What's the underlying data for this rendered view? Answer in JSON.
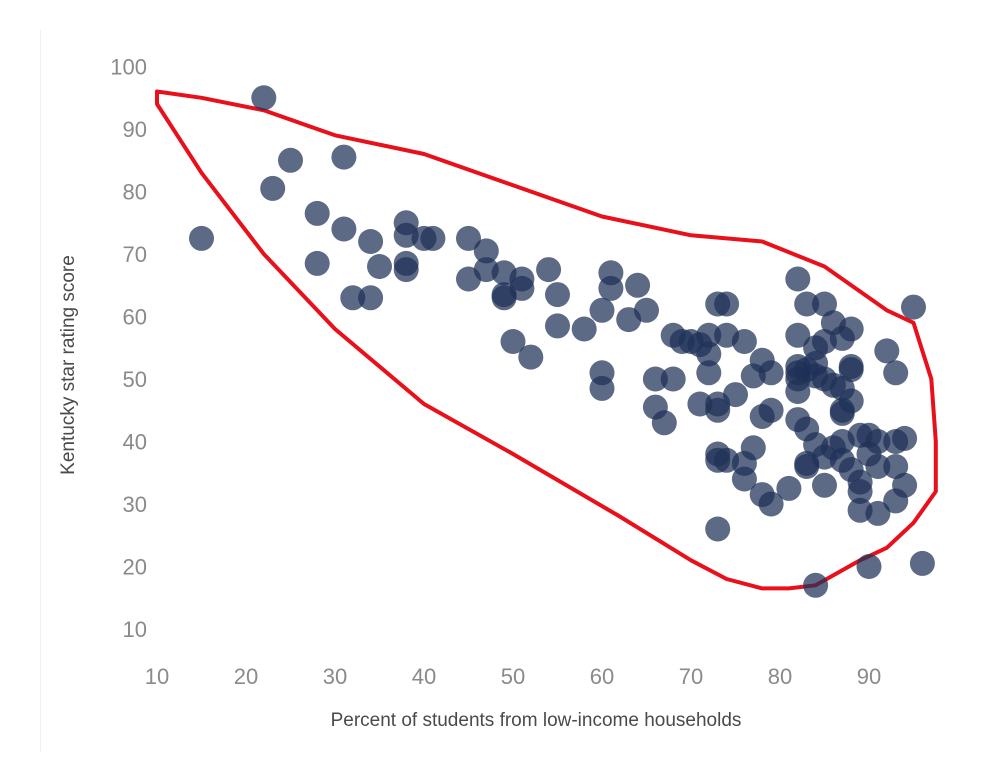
{
  "chart_data": {
    "type": "scatter",
    "title": "",
    "xlabel": "Percent of students from low-income households",
    "ylabel": "Kentucky star rating score",
    "xlim": [
      10,
      95
    ],
    "ylim": [
      10,
      100
    ],
    "xticks": [
      "10",
      "20",
      "30",
      "40",
      "50",
      "60",
      "70",
      "80",
      "90"
    ],
    "yticks": [
      "10",
      "20",
      "30",
      "40",
      "50",
      "60",
      "70",
      "80",
      "90",
      "100"
    ],
    "grid": false,
    "legend": "none",
    "colors": {
      "point": "#1f3157",
      "outline": "#e8101a",
      "tick_text": "#8a8a8a",
      "axis_title": "#4a4a4a"
    },
    "series": [
      {
        "points": [
          [
            15,
            72.5
          ],
          [
            22,
            95
          ],
          [
            23,
            80.5
          ],
          [
            25,
            85
          ],
          [
            28,
            76.5
          ],
          [
            28,
            68.5
          ],
          [
            31,
            85.5
          ],
          [
            31,
            74
          ],
          [
            32,
            63
          ],
          [
            34,
            72
          ],
          [
            34,
            63
          ],
          [
            35,
            68
          ],
          [
            38,
            75
          ],
          [
            38,
            73
          ],
          [
            38,
            68.5
          ],
          [
            38,
            67.5
          ],
          [
            40,
            72.5
          ],
          [
            41,
            72.5
          ],
          [
            45,
            72.5
          ],
          [
            45,
            66
          ],
          [
            47,
            70.5
          ],
          [
            47,
            67.5
          ],
          [
            49,
            67
          ],
          [
            49,
            63.5
          ],
          [
            49,
            63
          ],
          [
            51,
            66
          ],
          [
            51,
            64.5
          ],
          [
            50,
            56
          ],
          [
            52,
            53.5
          ],
          [
            54,
            67.5
          ],
          [
            55,
            63.5
          ],
          [
            55,
            58.5
          ],
          [
            58,
            58
          ],
          [
            60,
            61
          ],
          [
            60,
            51
          ],
          [
            60,
            48.5
          ],
          [
            61,
            67
          ],
          [
            61,
            64.5
          ],
          [
            63,
            59.5
          ],
          [
            64,
            65
          ],
          [
            65,
            61
          ],
          [
            66,
            50
          ],
          [
            66,
            45.5
          ],
          [
            67,
            43
          ],
          [
            68,
            57
          ],
          [
            68,
            50
          ],
          [
            69,
            56
          ],
          [
            70,
            56
          ],
          [
            71,
            55.5
          ],
          [
            71,
            46
          ],
          [
            72,
            57
          ],
          [
            72,
            54
          ],
          [
            72,
            51
          ],
          [
            73,
            62
          ],
          [
            73,
            46
          ],
          [
            73,
            45
          ],
          [
            73,
            38
          ],
          [
            73,
            37
          ],
          [
            74,
            62
          ],
          [
            74,
            57
          ],
          [
            74,
            37
          ],
          [
            73,
            26
          ],
          [
            75,
            47.5
          ],
          [
            76,
            56
          ],
          [
            76,
            36.5
          ],
          [
            76,
            34
          ],
          [
            77,
            50.5
          ],
          [
            77,
            39
          ],
          [
            78,
            53
          ],
          [
            78,
            44
          ],
          [
            78,
            31.5
          ],
          [
            79,
            51
          ],
          [
            79,
            45
          ],
          [
            79,
            30
          ],
          [
            81,
            32.5
          ],
          [
            82,
            66
          ],
          [
            82,
            57
          ],
          [
            82,
            52
          ],
          [
            82,
            51
          ],
          [
            82,
            50
          ],
          [
            82,
            48
          ],
          [
            82,
            43.5
          ],
          [
            83,
            62
          ],
          [
            83,
            51.5
          ],
          [
            83,
            42
          ],
          [
            83,
            36.5
          ],
          [
            83,
            36
          ],
          [
            84,
            55
          ],
          [
            84,
            52.5
          ],
          [
            84,
            50.5
          ],
          [
            84,
            39.5
          ],
          [
            84,
            17
          ],
          [
            85,
            62
          ],
          [
            85,
            56
          ],
          [
            85,
            50
          ],
          [
            85,
            37.5
          ],
          [
            85,
            33
          ],
          [
            86,
            59
          ],
          [
            86,
            49
          ],
          [
            86,
            39
          ],
          [
            87,
            56.5
          ],
          [
            87,
            48.5
          ],
          [
            87,
            45
          ],
          [
            87,
            44.5
          ],
          [
            87,
            40
          ],
          [
            87,
            37
          ],
          [
            88,
            58
          ],
          [
            88,
            52
          ],
          [
            88,
            51.5
          ],
          [
            88,
            46.5
          ],
          [
            88,
            35.5
          ],
          [
            89,
            41
          ],
          [
            89,
            33.5
          ],
          [
            89,
            32
          ],
          [
            89,
            29
          ],
          [
            90,
            41
          ],
          [
            90,
            38
          ],
          [
            90,
            20
          ],
          [
            91,
            40
          ],
          [
            91,
            36
          ],
          [
            91,
            28.5
          ],
          [
            92,
            54.5
          ],
          [
            93,
            51
          ],
          [
            93,
            40
          ],
          [
            93,
            36
          ],
          [
            93,
            30.5
          ],
          [
            94,
            40.5
          ],
          [
            94,
            33
          ],
          [
            95,
            61.5
          ],
          [
            96,
            20.5
          ]
        ]
      }
    ],
    "outline": [
      [
        10,
        96
      ],
      [
        15,
        95
      ],
      [
        22,
        93
      ],
      [
        30,
        89
      ],
      [
        40,
        86
      ],
      [
        50,
        81
      ],
      [
        60,
        76
      ],
      [
        70,
        73
      ],
      [
        78,
        72
      ],
      [
        85,
        68
      ],
      [
        92,
        61
      ],
      [
        95,
        59
      ],
      [
        97,
        50
      ],
      [
        97.5,
        40
      ],
      [
        97.5,
        32
      ],
      [
        95,
        27
      ],
      [
        92,
        23
      ],
      [
        89,
        21
      ],
      [
        84,
        17
      ],
      [
        81,
        16.5
      ],
      [
        78,
        16.5
      ],
      [
        74,
        18
      ],
      [
        70,
        21
      ],
      [
        62,
        28
      ],
      [
        50,
        38
      ],
      [
        40,
        46
      ],
      [
        30,
        58
      ],
      [
        22,
        70
      ],
      [
        15,
        83
      ],
      [
        10,
        94
      ],
      [
        10,
        96
      ]
    ]
  }
}
